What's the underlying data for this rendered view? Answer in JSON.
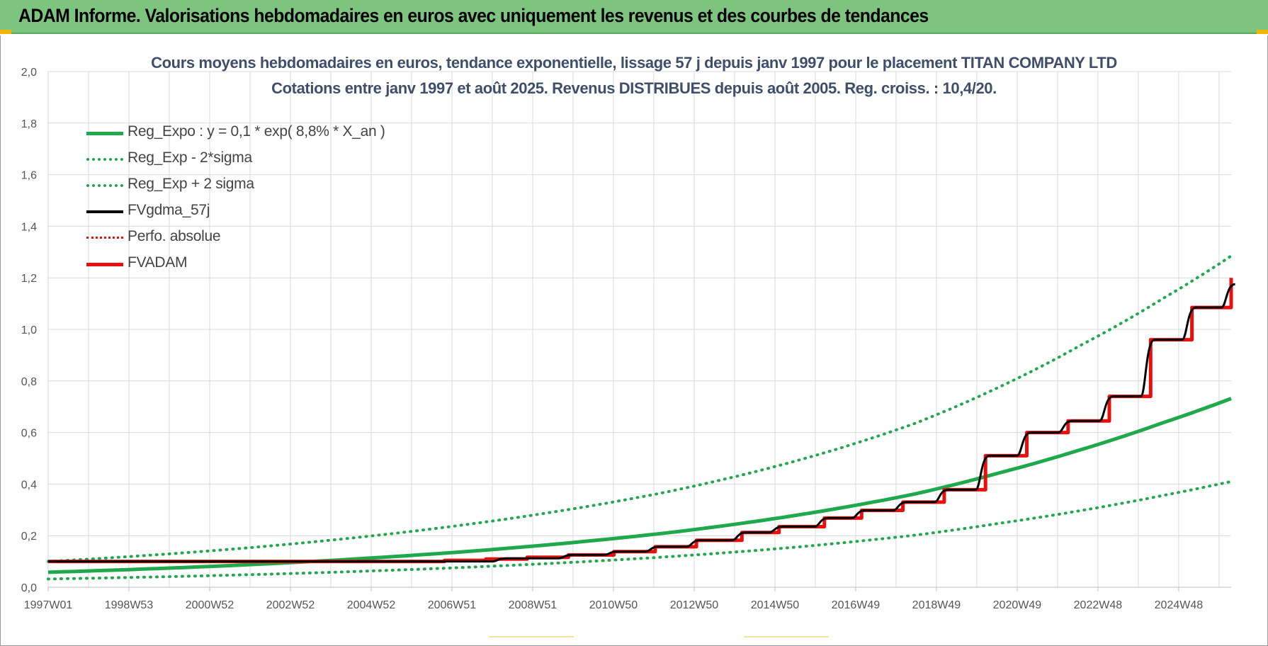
{
  "banner": {
    "title": "ADAM Informe. Valorisations hebdomadaires en euros avec uniquement les revenus et des courbes de tendances"
  },
  "colors": {
    "banner_bg": "#7dc47f",
    "green": "#1fa84c",
    "red": "#e8100c",
    "black": "#000000",
    "grid": "#d9d9d9",
    "title_text": "#3f4f6b",
    "corner_accent": "#f2b600"
  },
  "chart_data": {
    "type": "line",
    "title_line1": "Cours moyens hebdomadaires en euros, tendance exponentielle, lissage 57 j depuis janv 1997 pour le placement TITAN COMPANY LTD",
    "title_line2": "Cotations entre janv 1997 et août 2025.  Revenus DISTRIBUES depuis août 2005. Reg.  croiss. : 10,4/20.",
    "x_ticks": [
      "1997W01",
      "1998W53",
      "2000W52",
      "2002W52",
      "2004W52",
      "2006W51",
      "2008W51",
      "2010W50",
      "2012W50",
      "2014W50",
      "2016W49",
      "2018W49",
      "2020W49",
      "2022W48",
      "2024W48"
    ],
    "y_ticks": [
      "0,0",
      "0,2",
      "0,4",
      "0,6",
      "0,8",
      "1,0",
      "1,2",
      "1,4",
      "1,6",
      "1,8",
      "2,0"
    ],
    "ylim": [
      0,
      2.0
    ],
    "xlim": [
      1997.0,
      2025.65
    ],
    "grid": true,
    "legend_position": "top-left",
    "series": [
      {
        "name": "Reg_Expo : y = 0,1 * exp( 8,8% *  X_an )",
        "style": "solid",
        "color": "#1fa84c",
        "x": [
          1997.0,
          2001.0,
          2005.0,
          2009.0,
          2012.0,
          2015.0,
          2018.0,
          2020.0,
          2022.0,
          2024.0,
          2025.65
        ],
        "y": [
          0.058,
          0.081,
          0.115,
          0.163,
          0.211,
          0.276,
          0.362,
          0.442,
          0.533,
          0.638,
          0.732
        ]
      },
      {
        "name": "Reg_Exp - 2*sigma",
        "style": "dotted",
        "color": "#1fa84c",
        "x": [
          1997.0,
          2001.0,
          2005.0,
          2009.0,
          2012.0,
          2015.0,
          2018.0,
          2020.0,
          2022.0,
          2024.0,
          2025.65
        ],
        "y": [
          0.032,
          0.045,
          0.064,
          0.091,
          0.118,
          0.154,
          0.202,
          0.247,
          0.297,
          0.356,
          0.41
        ]
      },
      {
        "name": "Reg_Exp + 2 sigma",
        "style": "dotted",
        "color": "#1fa84c",
        "x": [
          1997.0,
          2001.0,
          2005.0,
          2009.0,
          2012.0,
          2015.0,
          2018.0,
          2020.0,
          2022.0,
          2024.0,
          2025.65
        ],
        "y": [
          0.1,
          0.142,
          0.202,
          0.286,
          0.37,
          0.485,
          0.636,
          0.774,
          0.938,
          1.12,
          1.285
        ]
      },
      {
        "name": "FVgdma_57j",
        "style": "solid",
        "color": "#000000",
        "x": [
          1997.0,
          2005.6,
          2008.0,
          2009.6,
          2010.7,
          2011.7,
          2012.7,
          2013.8,
          2014.7,
          2015.8,
          2016.7,
          2017.7,
          2018.7,
          2019.7,
          2020.7,
          2021.7,
          2022.7,
          2023.7,
          2024.7,
          2025.65
        ],
        "y": [
          0.1,
          0.1,
          0.112,
          0.125,
          0.138,
          0.157,
          0.182,
          0.212,
          0.235,
          0.268,
          0.298,
          0.33,
          0.378,
          0.51,
          0.6,
          0.645,
          0.74,
          0.96,
          1.085,
          1.175
        ]
      },
      {
        "name": "Perfo. absolue",
        "style": "dotted",
        "color": "#e8100c",
        "x": [],
        "y": []
      },
      {
        "name": "FVADAM",
        "style": "solid-step",
        "color": "#e8100c",
        "x": [
          1997.0,
          2005.6,
          2006.6,
          2007.6,
          2008.6,
          2009.6,
          2010.7,
          2011.7,
          2012.7,
          2013.8,
          2014.7,
          2015.8,
          2016.7,
          2017.7,
          2018.7,
          2019.7,
          2020.7,
          2021.7,
          2022.7,
          2023.7,
          2024.7,
          2025.65
        ],
        "y": [
          0.1,
          0.1,
          0.104,
          0.109,
          0.116,
          0.125,
          0.138,
          0.157,
          0.182,
          0.212,
          0.235,
          0.268,
          0.298,
          0.33,
          0.378,
          0.51,
          0.6,
          0.645,
          0.74,
          0.96,
          1.085,
          1.2
        ]
      }
    ]
  }
}
